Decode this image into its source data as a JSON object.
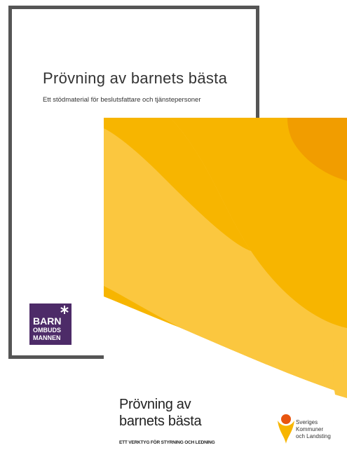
{
  "documents": [
    {
      "title": "Prövning av barnets bästa",
      "subtitle": "Ett stödmaterial för beslutsfattare och tjänstepersoner",
      "logo": {
        "lines": [
          "BARN",
          "OMBUDS",
          "MANNEN"
        ]
      }
    },
    {
      "title_lines": [
        "Prövning av",
        "barnets bästa"
      ],
      "subtitle": "ETT VERKTYG FÖR STYRNING OCH LEDNING",
      "logo": {
        "lines": [
          "Sveriges",
          "Kommuner",
          "och Landsting"
        ]
      }
    }
  ]
}
